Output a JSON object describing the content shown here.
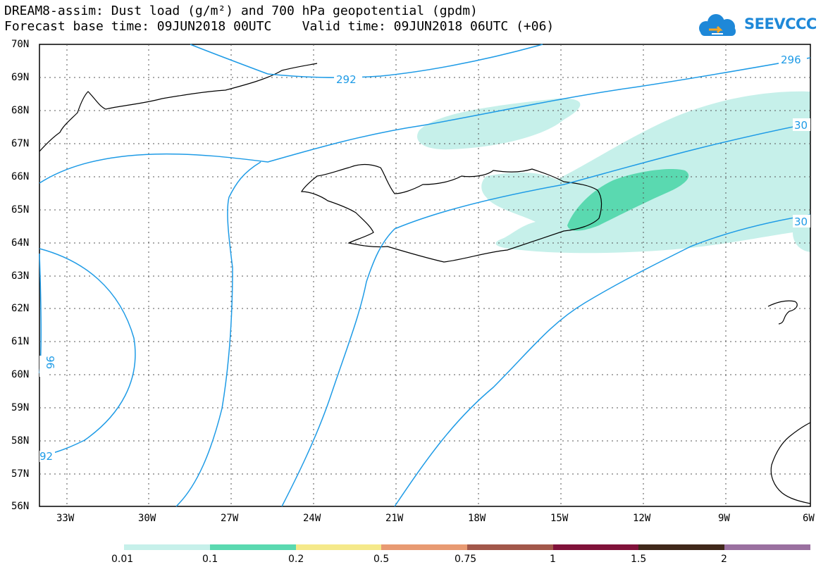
{
  "header": {
    "title_line1": "DREAM8-assim: Dust load (g/m²) and 700 hPa geopotential (gpdm)",
    "title_line2": "Forecast base time: 09JUN2018 00UTC    Valid time: 09JUN2018 06UTC (+06)"
  },
  "logo": {
    "text": "SEEVCCC",
    "icon": "cloud-icon"
  },
  "map": {
    "lat_labels": [
      "70N",
      "69N",
      "68N",
      "67N",
      "66N",
      "65N",
      "64N",
      "63N",
      "62N",
      "61N",
      "60N",
      "59N",
      "58N",
      "57N",
      "56N"
    ],
    "lon_labels": [
      "33W",
      "30W",
      "27W",
      "24W",
      "21W",
      "18W",
      "15W",
      "12W",
      "9W",
      "6W"
    ],
    "contour_labels": [
      "292",
      "296",
      "30",
      "30",
      "92",
      "96"
    ],
    "colors": {
      "contour": "#1e9be6",
      "coast": "#000000",
      "dust_low": "#c6f0ea",
      "dust_mid": "#5ad9b0"
    }
  },
  "colorbar": {
    "labels": [
      "0.01",
      "0.1",
      "0.2",
      "0.5",
      "0.75",
      "1",
      "1.5",
      "2"
    ],
    "colors": [
      "#c6f0ea",
      "#5ad9b0",
      "#f5e98a",
      "#e89a72",
      "#a2574a",
      "#80123a",
      "#40281a",
      "#9a70a0"
    ]
  }
}
